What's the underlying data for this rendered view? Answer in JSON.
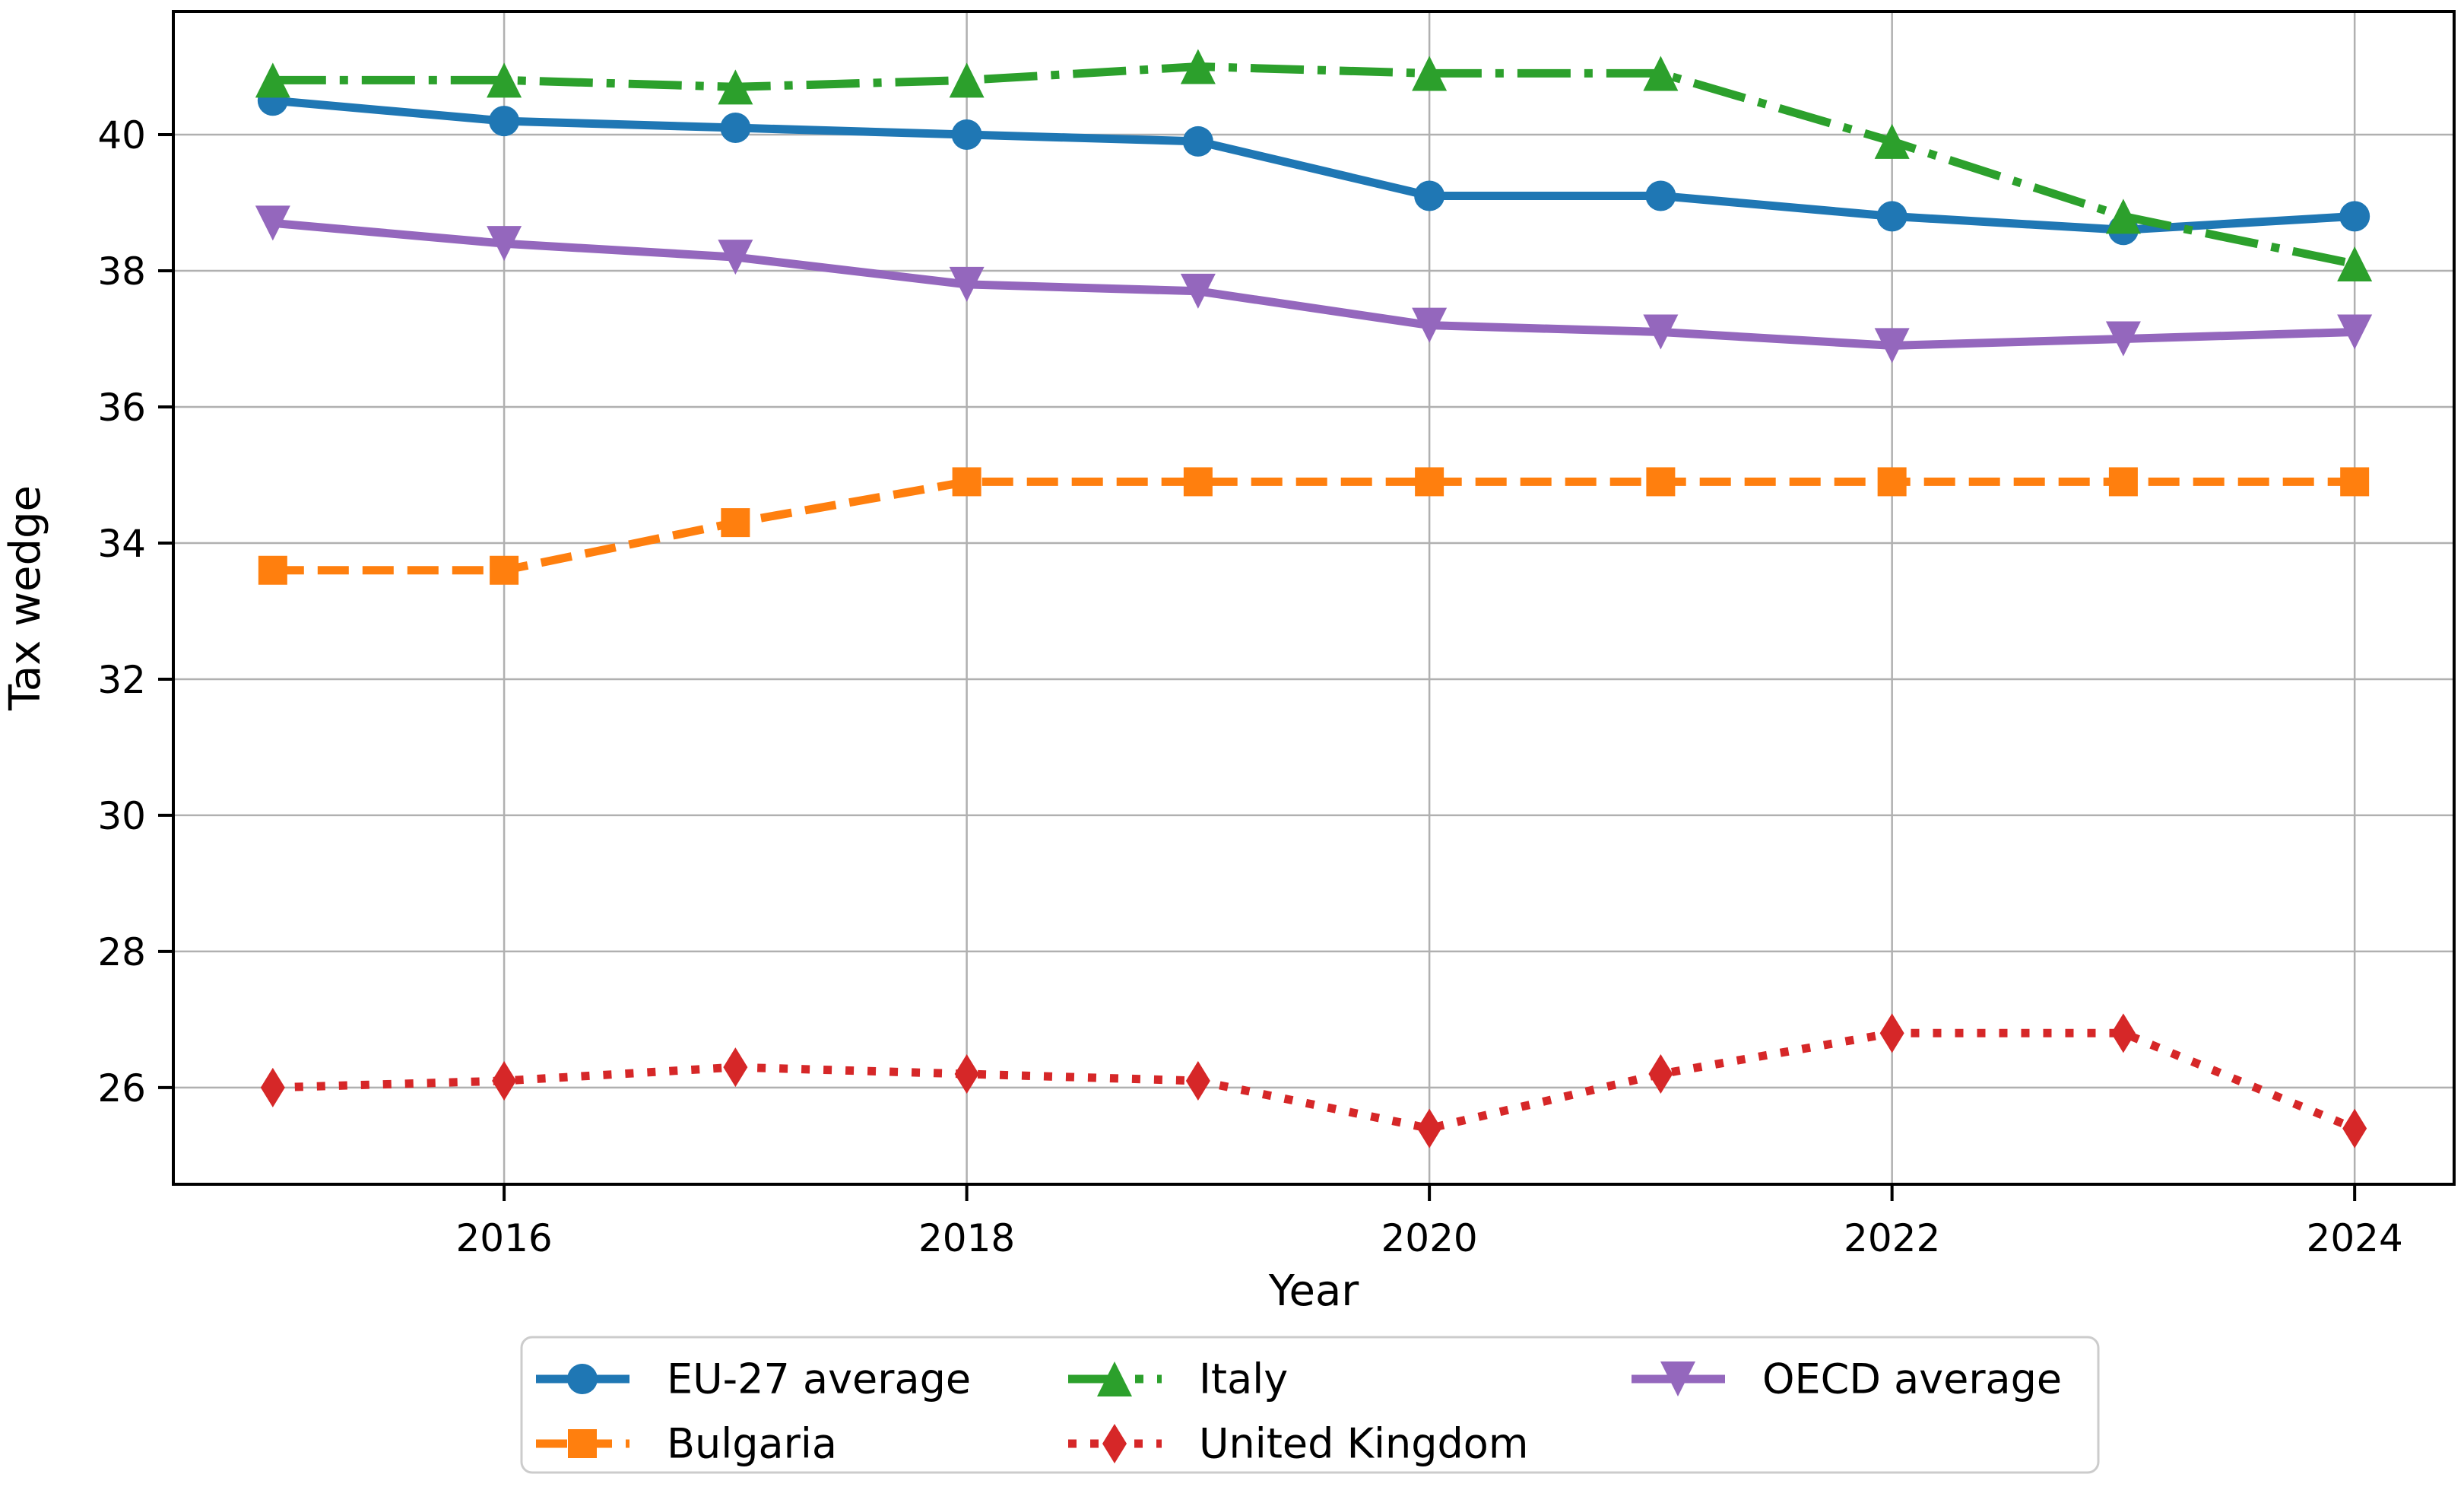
{
  "figure": {
    "background": "#ffffff",
    "grid_color": "#b0b0b0",
    "spine_color": "#000000",
    "legend_border_color": "#cccccc"
  },
  "chart_data": {
    "type": "line",
    "title": "",
    "xlabel": "Year",
    "ylabel": "Tax wedge",
    "x": [
      2015,
      2016,
      2017,
      2018,
      2019,
      2020,
      2021,
      2022,
      2023,
      2024
    ],
    "xlim": [
      2014.57,
      2024.43
    ],
    "ylim": [
      24.58,
      41.81
    ],
    "xticks": [
      2016,
      2018,
      2020,
      2022,
      2024
    ],
    "yticks": [
      26,
      28,
      30,
      32,
      34,
      36,
      38,
      40
    ],
    "grid": true,
    "legend_position": "lower center, 3 columns",
    "legend_columns": [
      [
        0,
        1
      ],
      [
        2,
        3
      ],
      [
        4
      ]
    ],
    "series": [
      {
        "name": "EU-27 average",
        "color": "#1f77b4",
        "linestyle": "solid",
        "marker": "circle",
        "values": [
          40.5,
          40.2,
          40.1,
          40.0,
          39.9,
          39.1,
          39.1,
          38.8,
          38.6,
          38.8
        ]
      },
      {
        "name": "Bulgaria",
        "color": "#ff7f0e",
        "linestyle": "dashed",
        "marker": "square",
        "values": [
          33.6,
          33.6,
          34.3,
          34.9,
          34.9,
          34.9,
          34.9,
          34.9,
          34.9,
          34.9
        ]
      },
      {
        "name": "Italy",
        "color": "#2ca02c",
        "linestyle": "dashdot",
        "marker": "triangle-up",
        "values": [
          40.8,
          40.8,
          40.7,
          40.8,
          41.0,
          40.9,
          40.9,
          39.9,
          38.8,
          38.1
        ]
      },
      {
        "name": "United Kingdom",
        "color": "#d62728",
        "linestyle": "dotted",
        "marker": "diamond",
        "values": [
          26.0,
          26.1,
          26.3,
          26.2,
          26.1,
          25.4,
          26.2,
          26.8,
          26.8,
          25.4
        ]
      },
      {
        "name": "OECD average",
        "color": "#9467bd",
        "linestyle": "solid",
        "marker": "triangle-down",
        "values": [
          38.7,
          38.4,
          38.2,
          37.8,
          37.7,
          37.2,
          37.1,
          36.9,
          37.0,
          37.1
        ]
      }
    ]
  }
}
